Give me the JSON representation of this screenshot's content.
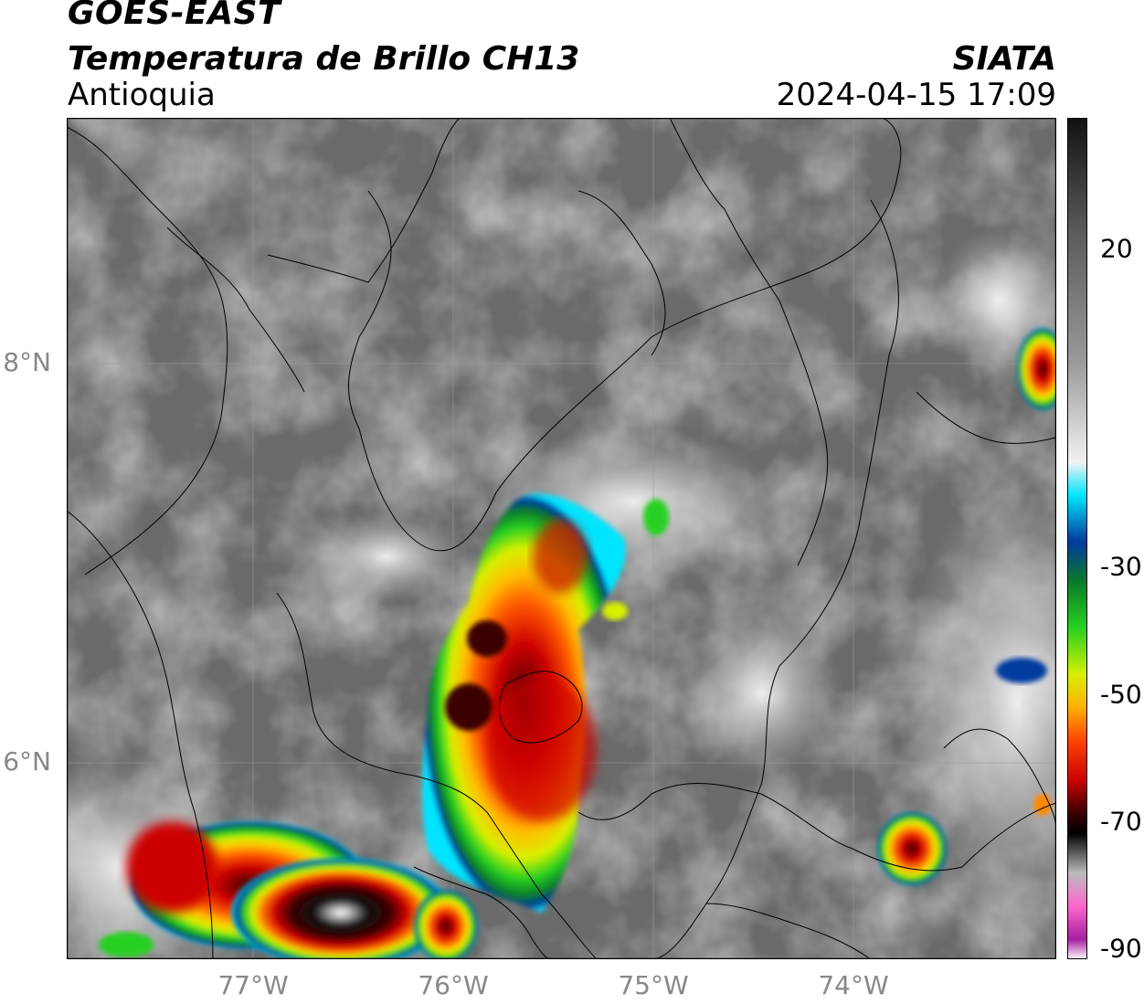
{
  "header": {
    "satellite": "GOES-EAST",
    "product": "Temperatura de Brillo CH13",
    "region": "Antioquia",
    "organization": "SIATA",
    "datetime": "2024-04-15 17:09"
  },
  "axes": {
    "lat_labels": [
      "8°N",
      "6°N"
    ],
    "lon_labels": [
      "77°W",
      "76°W",
      "75°W",
      "74°W"
    ]
  },
  "colorbar": {
    "tick_labels": [
      "20",
      "-30",
      "-50",
      "-70",
      "-90"
    ],
    "stops": [
      {
        "value": 37,
        "color": "#111111"
      },
      {
        "value": 20,
        "color": "#5a5a5a"
      },
      {
        "value": 0,
        "color": "#9a9a9a"
      },
      {
        "value": -15,
        "color": "#f2f2f2"
      },
      {
        "value": -20,
        "color": "#00e5ff"
      },
      {
        "value": -27,
        "color": "#003a9e"
      },
      {
        "value": -33,
        "color": "#0a7a2a"
      },
      {
        "value": -40,
        "color": "#28d020"
      },
      {
        "value": -47,
        "color": "#d6f000"
      },
      {
        "value": -52,
        "color": "#ffb000"
      },
      {
        "value": -57,
        "color": "#ff4400"
      },
      {
        "value": -63,
        "color": "#cc0000"
      },
      {
        "value": -68,
        "color": "#3a0000"
      },
      {
        "value": -71,
        "color": "#000000"
      },
      {
        "value": -77,
        "color": "#bbbbbb"
      },
      {
        "value": -82,
        "color": "#ff66cc"
      },
      {
        "value": -87,
        "color": "#a61ea0"
      },
      {
        "value": -90,
        "color": "#ffffff"
      }
    ]
  }
}
